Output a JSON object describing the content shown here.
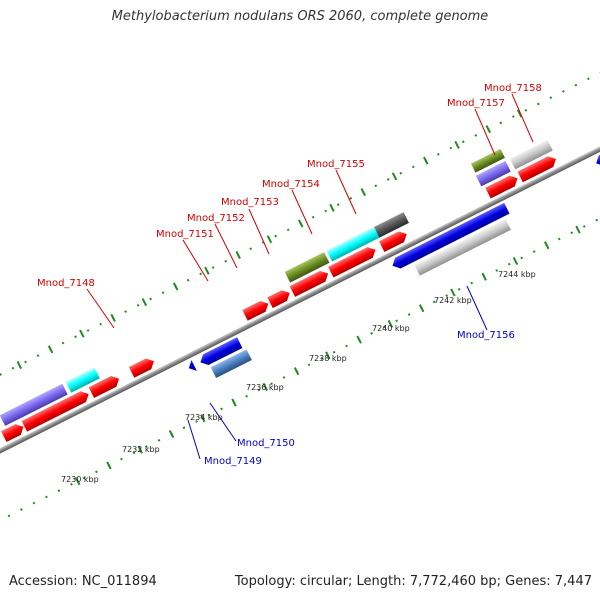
{
  "title": "Methylobacterium nodulans ORS 2060, complete genome",
  "footer": {
    "accession": "Accession: NC_011894",
    "summary": "Topology: circular; Length: 7,772,460 bp; Genes: 7,447"
  },
  "scale_labels": [
    "7230 kbp",
    "7232 kbp",
    "7234 kbp",
    "7236 kbp",
    "7238 kbp",
    "7240 kbp",
    "7242 kbp",
    "7244 kbp"
  ],
  "gene_labels_top": [
    "Mnod_7148",
    "Mnod_7151",
    "Mnod_7152",
    "Mnod_7153",
    "Mnod_7154",
    "Mnod_7155",
    "Mnod_7157",
    "Mnod_7158"
  ],
  "gene_labels_bottom": [
    "Mnod_7149",
    "Mnod_7150",
    "Mnod_7156"
  ],
  "colors": {
    "red": "#ff0000",
    "blue": "#0000e0",
    "steel": "#4a7fc0",
    "cyan": "#00ffff",
    "olive": "#6b8e23",
    "purple": "#7b68ee",
    "gray": "#c8c8c8",
    "dark_gray": "#555555",
    "axis": "#888888",
    "dots": "#228b22",
    "label_red": "#d40000",
    "label_blue": "#0000c8"
  }
}
